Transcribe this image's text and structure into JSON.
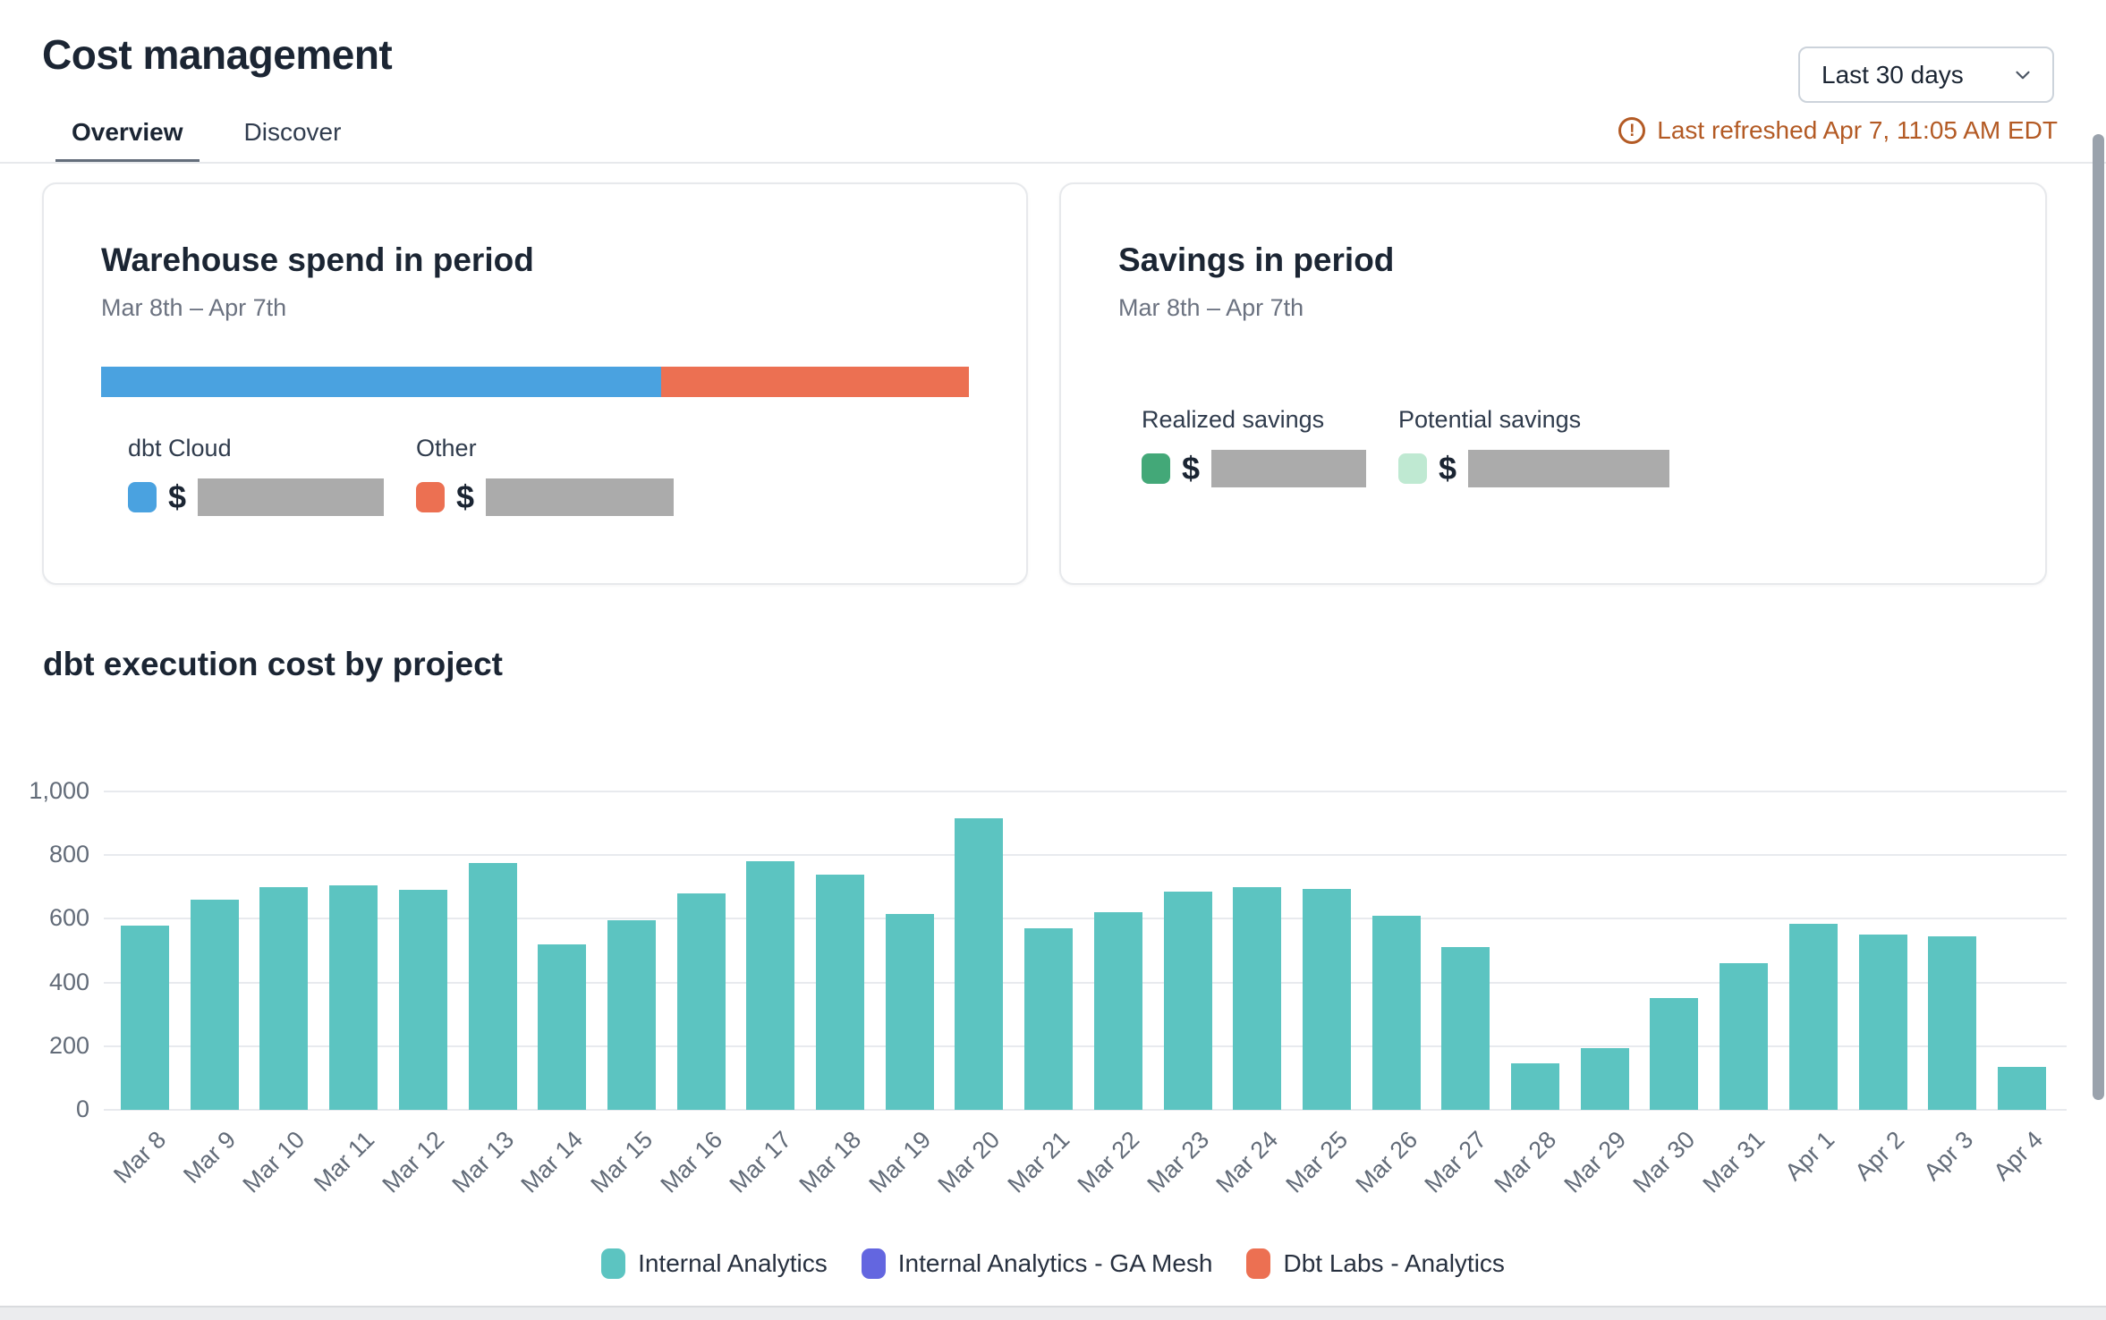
{
  "header": {
    "title": "Cost management",
    "tabs": [
      {
        "label": "Overview",
        "active": true
      },
      {
        "label": "Discover",
        "active": false
      }
    ],
    "date_range_selector": {
      "value": "Last 30 days"
    },
    "last_refreshed": "Last refreshed Apr 7, 11:05 AM EDT",
    "last_refreshed_color": "#b35a24"
  },
  "cards": {
    "warehouse_spend": {
      "title": "Warehouse spend in period",
      "subtitle": "Mar 8th – Apr 7th",
      "bar": {
        "segments": [
          {
            "label": "dbt Cloud",
            "color": "#4aa2e0",
            "fraction": 0.645
          },
          {
            "label": "Other",
            "color": "#ec7052",
            "fraction": 0.355
          }
        ]
      },
      "legend": [
        {
          "label": "dbt Cloud",
          "color": "#4aa2e0",
          "value_prefix": "$",
          "value_redacted": true
        },
        {
          "label": "Other",
          "color": "#ec7052",
          "value_prefix": "$",
          "value_redacted": true
        }
      ]
    },
    "savings": {
      "title": "Savings in period",
      "subtitle": "Mar 8th – Apr 7th",
      "legend": [
        {
          "label": "Realized savings",
          "color": "#43a878",
          "value_prefix": "$",
          "value_redacted": true
        },
        {
          "label": "Potential savings",
          "color": "#bfe9d2",
          "value_prefix": "$",
          "value_redacted": true
        }
      ]
    }
  },
  "chart_section": {
    "title": "dbt execution cost by project"
  },
  "chart_data": {
    "type": "bar",
    "title": "dbt execution cost by project",
    "categories": [
      "Mar 8",
      "Mar 9",
      "Mar 10",
      "Mar 11",
      "Mar 12",
      "Mar 13",
      "Mar 14",
      "Mar 15",
      "Mar 16",
      "Mar 17",
      "Mar 18",
      "Mar 19",
      "Mar 20",
      "Mar 21",
      "Mar 22",
      "Mar 23",
      "Mar 24",
      "Mar 25",
      "Mar 26",
      "Mar 27",
      "Mar 28",
      "Mar 29",
      "Mar 30",
      "Mar 31",
      "Apr 1",
      "Apr 2",
      "Apr 3",
      "Apr 4"
    ],
    "series": [
      {
        "name": "Internal Analytics",
        "color": "#5cc4c1",
        "values": [
          580,
          660,
          700,
          705,
          690,
          775,
          520,
          595,
          680,
          780,
          740,
          615,
          915,
          570,
          620,
          685,
          700,
          695,
          610,
          510,
          145,
          195,
          350,
          460,
          585,
          550,
          545,
          135
        ]
      }
    ],
    "legend": [
      {
        "label": "Internal Analytics",
        "color": "#5cc4c1"
      },
      {
        "label": "Internal Analytics - GA Mesh",
        "color": "#6366e0"
      },
      {
        "label": "Dbt Labs - Analytics",
        "color": "#ec7052"
      }
    ],
    "xlabel": "",
    "ylabel": "",
    "ylim": [
      0,
      1000
    ],
    "yticks": [
      0,
      200,
      400,
      600,
      800,
      1000
    ],
    "ytick_labels": [
      "0",
      "200",
      "400",
      "600",
      "800",
      "1,000"
    ],
    "grid": true,
    "legend_position": "bottom"
  }
}
